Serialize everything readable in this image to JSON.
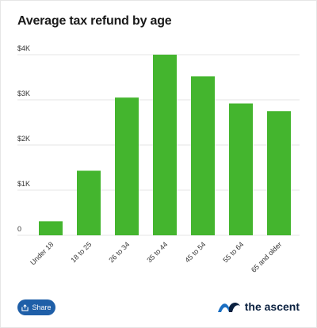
{
  "title": "Average tax refund by age",
  "share_label": "Share",
  "brand": {
    "name": "the ascent",
    "icon": "ascent-logo-icon"
  },
  "colors": {
    "bar": "#44b52e",
    "grid": "#e5e5e5",
    "share": "#1f5fa8",
    "brand_blue": "#1b6fc2",
    "brand_dark": "#0b2140"
  },
  "chart_data": {
    "type": "bar",
    "categories": [
      "Under 18",
      "18 to 25",
      "26 to 34",
      "35 to 44",
      "45 to 54",
      "55 to 64",
      "65 and older"
    ],
    "values": [
      310,
      1430,
      3050,
      4000,
      3520,
      2920,
      2750
    ],
    "ylim": [
      0,
      4000
    ],
    "yticks": [
      0,
      1000,
      2000,
      3000,
      4000
    ],
    "ytick_labels": [
      "0",
      "$1K",
      "$2K",
      "$3K",
      "$4K"
    ],
    "xlabel": "",
    "ylabel": "",
    "grid": true,
    "legend": "none"
  }
}
